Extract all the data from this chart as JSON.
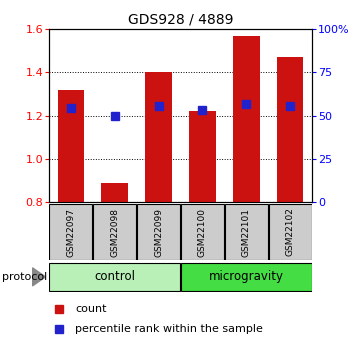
{
  "title": "GDS928 / 4889",
  "samples": [
    "GSM22097",
    "GSM22098",
    "GSM22099",
    "GSM22100",
    "GSM22101",
    "GSM22102"
  ],
  "red_values": [
    1.32,
    0.885,
    1.4,
    1.22,
    1.57,
    1.47
  ],
  "blue_values": [
    1.235,
    1.2,
    1.245,
    1.225,
    1.255,
    1.245
  ],
  "ylim_left": [
    0.8,
    1.6
  ],
  "ylim_right": [
    0,
    100
  ],
  "yticks_left": [
    0.8,
    1.0,
    1.2,
    1.4,
    1.6
  ],
  "yticks_right": [
    0,
    25,
    50,
    75,
    100
  ],
  "ytick_labels_right": [
    "0",
    "25",
    "50",
    "75",
    "100%"
  ],
  "groups": [
    {
      "label": "control",
      "indices": [
        0,
        1,
        2
      ],
      "color": "#b8f0b8"
    },
    {
      "label": "microgravity",
      "indices": [
        3,
        4,
        5
      ],
      "color": "#44dd44"
    }
  ],
  "protocol_label": "protocol",
  "bar_color": "#cc1111",
  "bar_baseline": 0.8,
  "blue_color": "#2222cc",
  "bar_width": 0.6,
  "blue_marker_size": 6,
  "bg_color": "#ffffff",
  "tick_label_bg": "#cccccc",
  "legend_items": [
    "count",
    "percentile rank within the sample"
  ]
}
